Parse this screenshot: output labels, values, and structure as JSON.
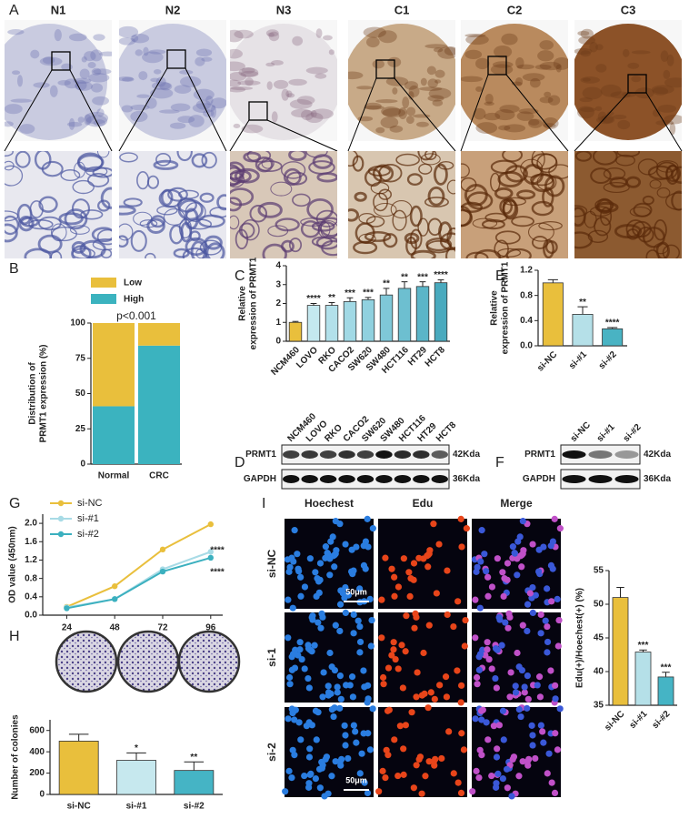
{
  "panel_letters": [
    "A",
    "B",
    "C",
    "D",
    "E",
    "F",
    "G",
    "H",
    "I"
  ],
  "ihc": {
    "labels": [
      "N1",
      "N2",
      "N3",
      "C1",
      "C2",
      "C3"
    ]
  },
  "chart_data": [
    {
      "type": "stacked_bar",
      "categories": [
        "Normal",
        "CRC"
      ],
      "series": [
        {
          "name": "Low",
          "color": "#e9bf3c",
          "values": [
            59,
            16
          ]
        },
        {
          "name": "High",
          "color": "#3bb3bf",
          "values": [
            41,
            84
          ]
        }
      ],
      "ylim": [
        0,
        100
      ],
      "yticks": [
        0,
        25,
        50,
        75,
        100
      ],
      "ylabel": [
        "Distribution of",
        "PRMT1 expression (%)"
      ],
      "annotation": "p<0.001"
    },
    {
      "type": "bar",
      "categories": [
        "NCM460",
        "LOVO",
        "RKO",
        "CACO2",
        "SW620",
        "SW480",
        "HCT116",
        "HT29",
        "HCT8"
      ],
      "values": [
        1.0,
        1.9,
        1.9,
        2.1,
        2.2,
        2.45,
        2.8,
        2.9,
        3.1
      ],
      "errors": [
        0.05,
        0.1,
        0.15,
        0.2,
        0.12,
        0.35,
        0.35,
        0.25,
        0.15
      ],
      "significance": [
        null,
        "****",
        "**",
        "***",
        "***",
        "**",
        "**",
        "***",
        "****"
      ],
      "colors": [
        "#e9bf3c",
        "#c4e8ef",
        "#b2e0ea",
        "#a1d9e5",
        "#90d1df",
        "#7fc8d8",
        "#6dbfd0",
        "#5bb5c8",
        "#49aabe"
      ],
      "ylim": [
        0,
        4
      ],
      "yticks": [
        0,
        1,
        2,
        3,
        4
      ],
      "ylabel": [
        "Relative",
        "expression of PRMT1"
      ]
    },
    {
      "type": "bar",
      "categories": [
        "si-NC",
        "si-#1",
        "si-#2"
      ],
      "values": [
        1.0,
        0.5,
        0.27
      ],
      "errors": [
        0.05,
        0.12,
        0.02
      ],
      "significance": [
        null,
        "**",
        "****"
      ],
      "colors": [
        "#e9bf3c",
        "#b5e0e8",
        "#49b3c3"
      ],
      "ylim": [
        0,
        1.2
      ],
      "yticks": [
        {
          "value": 0,
          "label": "0.0"
        },
        0.4,
        0.8,
        1.2
      ],
      "ylabel": [
        "Relative",
        "expression of PRMT1"
      ]
    },
    {
      "type": "line",
      "x": [
        24,
        48,
        72,
        96
      ],
      "xlim": [
        12,
        102
      ],
      "xticks": [
        24,
        48,
        72,
        96
      ],
      "series": [
        {
          "name": "si-NC",
          "color": "#e9bf3c",
          "values": [
            0.18,
            0.63,
            1.43,
            1.98
          ]
        },
        {
          "name": "si-#1",
          "color": "#a8dbe6",
          "values": [
            0.17,
            0.35,
            1.0,
            1.38
          ]
        },
        {
          "name": "si-#2",
          "color": "#3bb0bf",
          "values": [
            0.15,
            0.35,
            0.95,
            1.25
          ]
        }
      ],
      "ylim": [
        0,
        2.2
      ],
      "yticks": [
        {
          "value": 0,
          "label": "0.0"
        },
        0.4,
        0.8,
        1.2,
        1.6,
        {
          "value": 2,
          "label": "2.0"
        }
      ],
      "ylabel": "OD value (450nm)",
      "annotations": [
        "****",
        "****"
      ]
    },
    {
      "type": "bar",
      "categories": [
        "si-NC",
        "si-#1",
        "si-#2"
      ],
      "values": [
        500,
        320,
        225
      ],
      "errors": [
        65,
        70,
        80
      ],
      "significance": [
        null,
        "*",
        "**"
      ],
      "colors": [
        "#e9bf3c",
        "#c6e8ee",
        "#45b4c5"
      ],
      "ylim": [
        0,
        700
      ],
      "yticks": [
        0,
        200,
        400,
        600
      ],
      "ylabel": "Number of colonies"
    },
    {
      "type": "bar",
      "categories": [
        "si-NC",
        "si-#1",
        "si-#2"
      ],
      "values": [
        51,
        42.9,
        39.2
      ],
      "errors": [
        1.5,
        0.3,
        0.7
      ],
      "significance": [
        null,
        "***",
        "***"
      ],
      "colors": [
        "#e9bf3c",
        "#b5e0e8",
        "#45b4c5"
      ],
      "ylim": [
        35,
        55
      ],
      "yticks": [
        35,
        40,
        45,
        50,
        55
      ],
      "ylabel": "Edu(+)/Hoechest(+) (%)"
    }
  ],
  "blots": [
    {
      "lanes": [
        "NCM460",
        "LOVO",
        "RKO",
        "CACO2",
        "SW620",
        "SW480",
        "HCT116",
        "HT29",
        "HCT8"
      ],
      "rows": [
        {
          "protein": "PRMT1",
          "size": "42Kda"
        },
        {
          "protein": "GAPDH",
          "size": "36Kda"
        }
      ]
    },
    {
      "lanes": [
        "si-NC",
        "si-#1",
        "si-#2"
      ],
      "rows": [
        {
          "protein": "PRMT1",
          "size": "42Kda"
        },
        {
          "protein": "GAPDH",
          "size": "36Kda"
        }
      ]
    }
  ],
  "edu": {
    "columns": [
      "Hoechest",
      "Edu",
      "Merge"
    ],
    "rows": [
      "si-NC",
      "si-1",
      "si-2"
    ],
    "scale_bar": "50μm"
  }
}
